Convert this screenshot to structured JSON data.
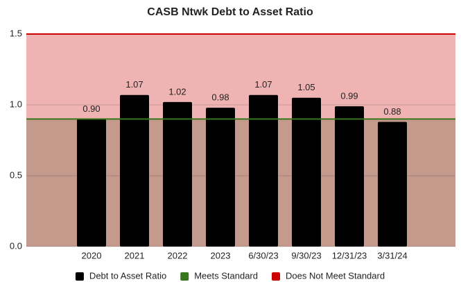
{
  "chart_data": {
    "type": "bar",
    "title": "CASB Ntwk Debt to Asset Ratio",
    "categories": [
      "2020",
      "2021",
      "2022",
      "2023",
      "6/30/23",
      "9/30/23",
      "12/31/23",
      "3/31/24"
    ],
    "series": [
      {
        "name": "Debt to Asset Ratio",
        "color": "#000000",
        "values": [
          0.9,
          1.07,
          1.02,
          0.98,
          1.07,
          1.05,
          0.99,
          0.88
        ],
        "value_labels": [
          "0.90",
          "1.07",
          "1.02",
          "0.98",
          "1.07",
          "1.05",
          "0.99",
          "0.88"
        ]
      }
    ],
    "reference_lines": [
      {
        "name": "Meets Standard",
        "color": "#38761d",
        "value": 0.9,
        "below_fill": "#c39a8b"
      },
      {
        "name": "Does Not Meet Standard",
        "color": "#cc0000",
        "value": 1.5,
        "below_fill": "#efb3b3"
      }
    ],
    "ylim": [
      0,
      1.5
    ],
    "yticks": [
      {
        "value": 0,
        "label": "0.0"
      },
      0.5,
      {
        "value": 1,
        "label": "1.0"
      },
      1.5
    ],
    "grid": true,
    "legend": "bottom"
  }
}
